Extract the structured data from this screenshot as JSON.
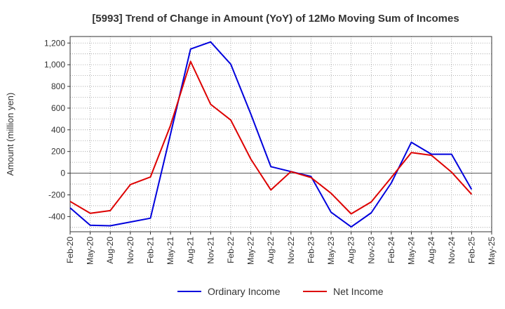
{
  "chart_data": {
    "type": "line",
    "title": "[5993]  Trend of Change in Amount (YoY) of 12Mo Moving Sum of Incomes",
    "xlabel": "",
    "ylabel": "Amount (million yen)",
    "ylim": [
      -540,
      1260
    ],
    "yticks": [
      -400,
      -200,
      0,
      200,
      400,
      600,
      800,
      1000,
      1200
    ],
    "ytick_labels": [
      "-400",
      "-200",
      "0",
      "200",
      "400",
      "600",
      "800",
      "1,000",
      "1,200"
    ],
    "categories": [
      "Feb-20",
      "May-20",
      "Aug-20",
      "Nov-20",
      "Feb-21",
      "May-21",
      "Aug-21",
      "Nov-21",
      "Feb-22",
      "May-22",
      "Aug-22",
      "Nov-22",
      "Feb-23",
      "May-23",
      "Aug-23",
      "Nov-23",
      "Feb-24",
      "May-24",
      "Aug-24",
      "Nov-24",
      "Feb-25",
      "May-25"
    ],
    "series": [
      {
        "name": "Ordinary Income",
        "color": "#0000dd",
        "values": [
          -320,
          -480,
          -485,
          -450,
          -415,
          360,
          1145,
          1210,
          1005,
          545,
          60,
          15,
          -30,
          -360,
          -495,
          -365,
          -90,
          285,
          175,
          175,
          -150,
          null
        ]
      },
      {
        "name": "Net Income",
        "color": "#dd0000",
        "values": [
          -260,
          -370,
          -345,
          -105,
          -35,
          440,
          1030,
          635,
          490,
          130,
          -155,
          15,
          -40,
          -185,
          -375,
          -265,
          -40,
          190,
          165,
          10,
          -195,
          null
        ]
      }
    ],
    "grid": true,
    "legend_position": "bottom-center"
  }
}
